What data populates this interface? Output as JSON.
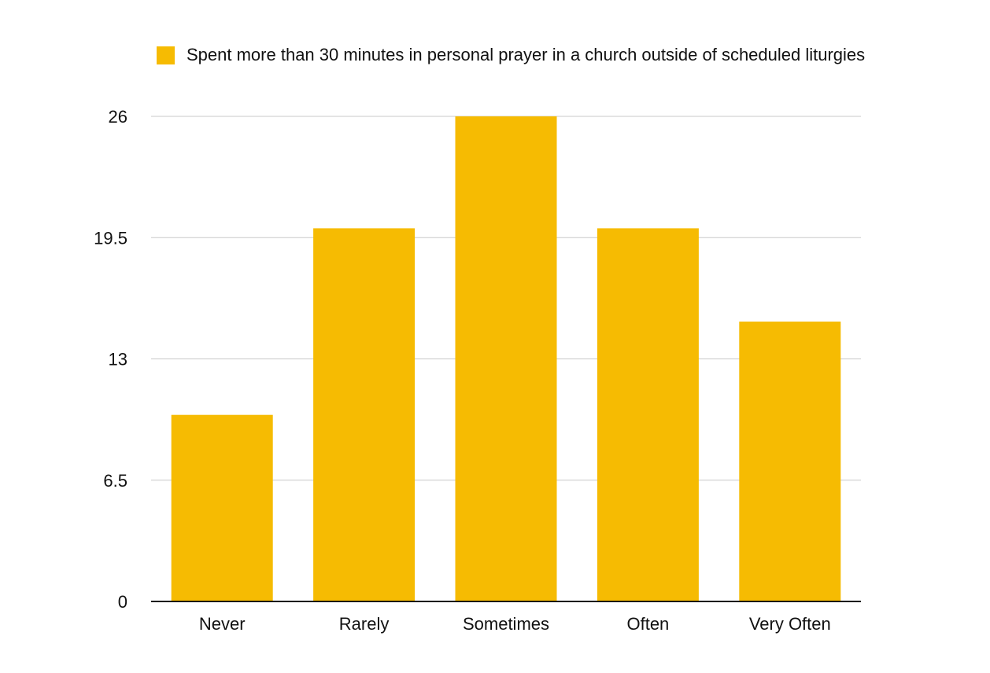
{
  "colors": {
    "bar": "#F6BB02",
    "grid": "#C8C8C8",
    "axis": "#111111",
    "text": "#111111"
  },
  "legend": {
    "label": "Spent more than 30 minutes in personal prayer in a church outside of scheduled liturgies"
  },
  "chart_data": {
    "type": "bar",
    "title": "",
    "xlabel": "",
    "ylabel": "",
    "categories": [
      "Never",
      "Rarely",
      "Sometimes",
      "Often",
      "Very Often"
    ],
    "series": [
      {
        "name": "Spent more than 30 minutes in personal prayer in a church outside of scheduled liturgies",
        "values": [
          10,
          20,
          26,
          20,
          15
        ]
      }
    ],
    "ylim": [
      0,
      26
    ],
    "yticks": [
      0,
      6.5,
      13,
      19.5,
      26
    ],
    "ytick_labels": [
      "0",
      "6.5",
      "13",
      "19.5",
      "26"
    ],
    "grid": true,
    "legend_position": "top"
  }
}
